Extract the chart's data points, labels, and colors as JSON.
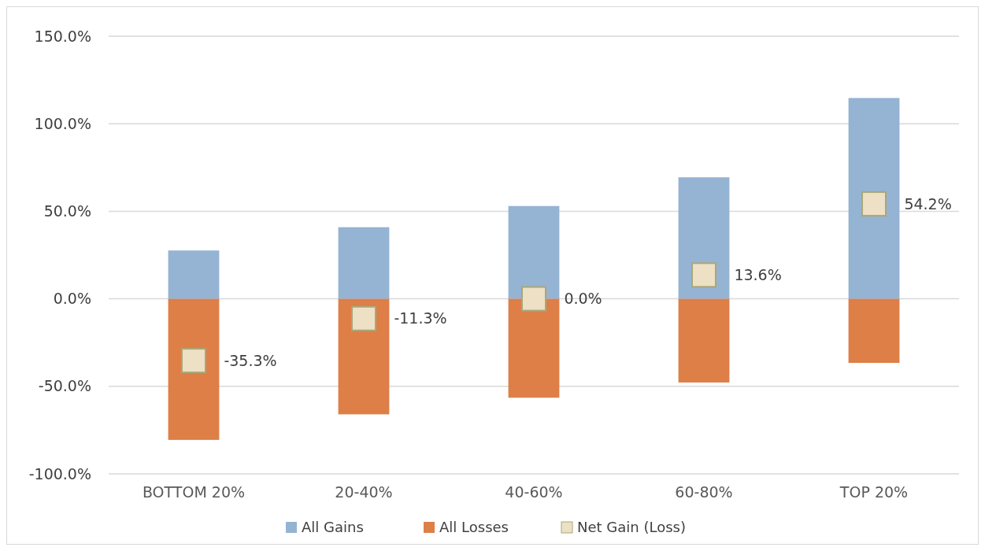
{
  "chart_data": {
    "type": "bar",
    "stacked": true,
    "categories": [
      "BOTTOM 20%",
      "20-40%",
      "40-60%",
      "60-80%",
      "TOP 20%"
    ],
    "series": [
      {
        "name": "All Gains",
        "color": "#95b3d3",
        "values": [
          27.6,
          40.9,
          53.0,
          69.4,
          114.7
        ]
      },
      {
        "name": "All Losses",
        "color": "#dd7f47",
        "values": [
          -80.6,
          -66.0,
          -56.5,
          -47.8,
          -36.6
        ]
      },
      {
        "name": "Net Gain (Loss)",
        "type": "scatter",
        "marker": "square",
        "color": "#ede0c5",
        "x": [
          "BOTTOM 20%",
          "20-40%",
          "40-60%",
          "60-80%",
          "TOP 20%"
        ],
        "values": [
          -35.3,
          -11.3,
          0.0,
          13.6,
          54.2
        ],
        "value_labels": [
          "-35.3%",
          "-11.3%",
          "0.0%",
          "13.6%",
          "54.2%"
        ]
      }
    ],
    "ylim": [
      -100,
      150
    ],
    "yticks": [
      {
        "value": -100,
        "label": "-100.0%"
      },
      {
        "value": -50,
        "label": "-50.0%"
      },
      {
        "value": 0,
        "label": "0.0%"
      },
      {
        "value": 50,
        "label": "50.0%"
      },
      {
        "value": 100,
        "label": "100.0%"
      },
      {
        "value": 150,
        "label": "150.0%"
      }
    ],
    "grid": "y",
    "legend": "bottom"
  }
}
